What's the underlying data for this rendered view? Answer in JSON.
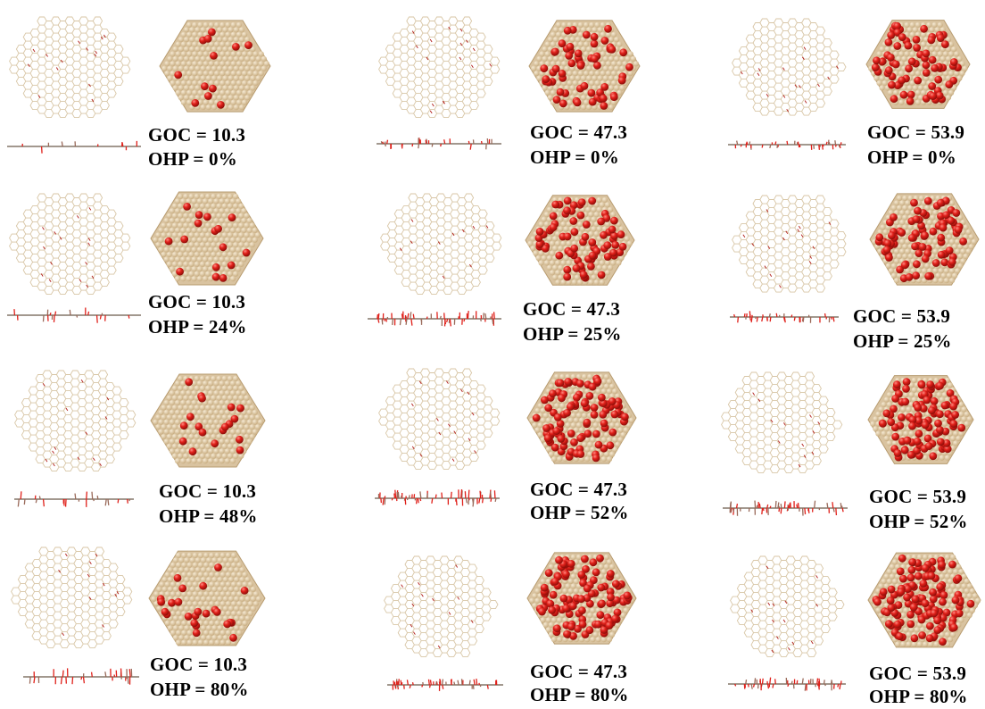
{
  "colors": {
    "carbon_wire": "#d8c6a6",
    "carbon_sphere": "#d9c3a0",
    "oxygen": "#e0201a",
    "oxygen_wire": "#b01a16"
  },
  "rows": [
    {
      "goc": "GOC = 10.3",
      "ohp": "OHP = 0%"
    },
    {
      "goc": "GOC = 47.3",
      "ohp": "OHP = 0%"
    },
    {
      "goc": "GOC = 53.9",
      "ohp": "OHP = 0%"
    },
    {
      "goc": "GOC = 10.3",
      "ohp": "OHP = 24%"
    },
    {
      "goc": "GOC = 47.3",
      "ohp": "OHP = 25%"
    },
    {
      "goc": "GOC = 53.9",
      "ohp": "OHP = 25%"
    },
    {
      "goc": "GOC = 10.3",
      "ohp": "OHP = 48%"
    },
    {
      "goc": "GOC = 47.3",
      "ohp": "OHP = 52%"
    },
    {
      "goc": "GOC = 53.9",
      "ohp": "OHP = 52%"
    },
    {
      "goc": "GOC = 10.3",
      "ohp": "OHP = 80%"
    },
    {
      "goc": "GOC = 47.3",
      "ohp": "OHP = 80%"
    },
    {
      "goc": "GOC = 53.9",
      "ohp": "OHP = 80%"
    }
  ]
}
